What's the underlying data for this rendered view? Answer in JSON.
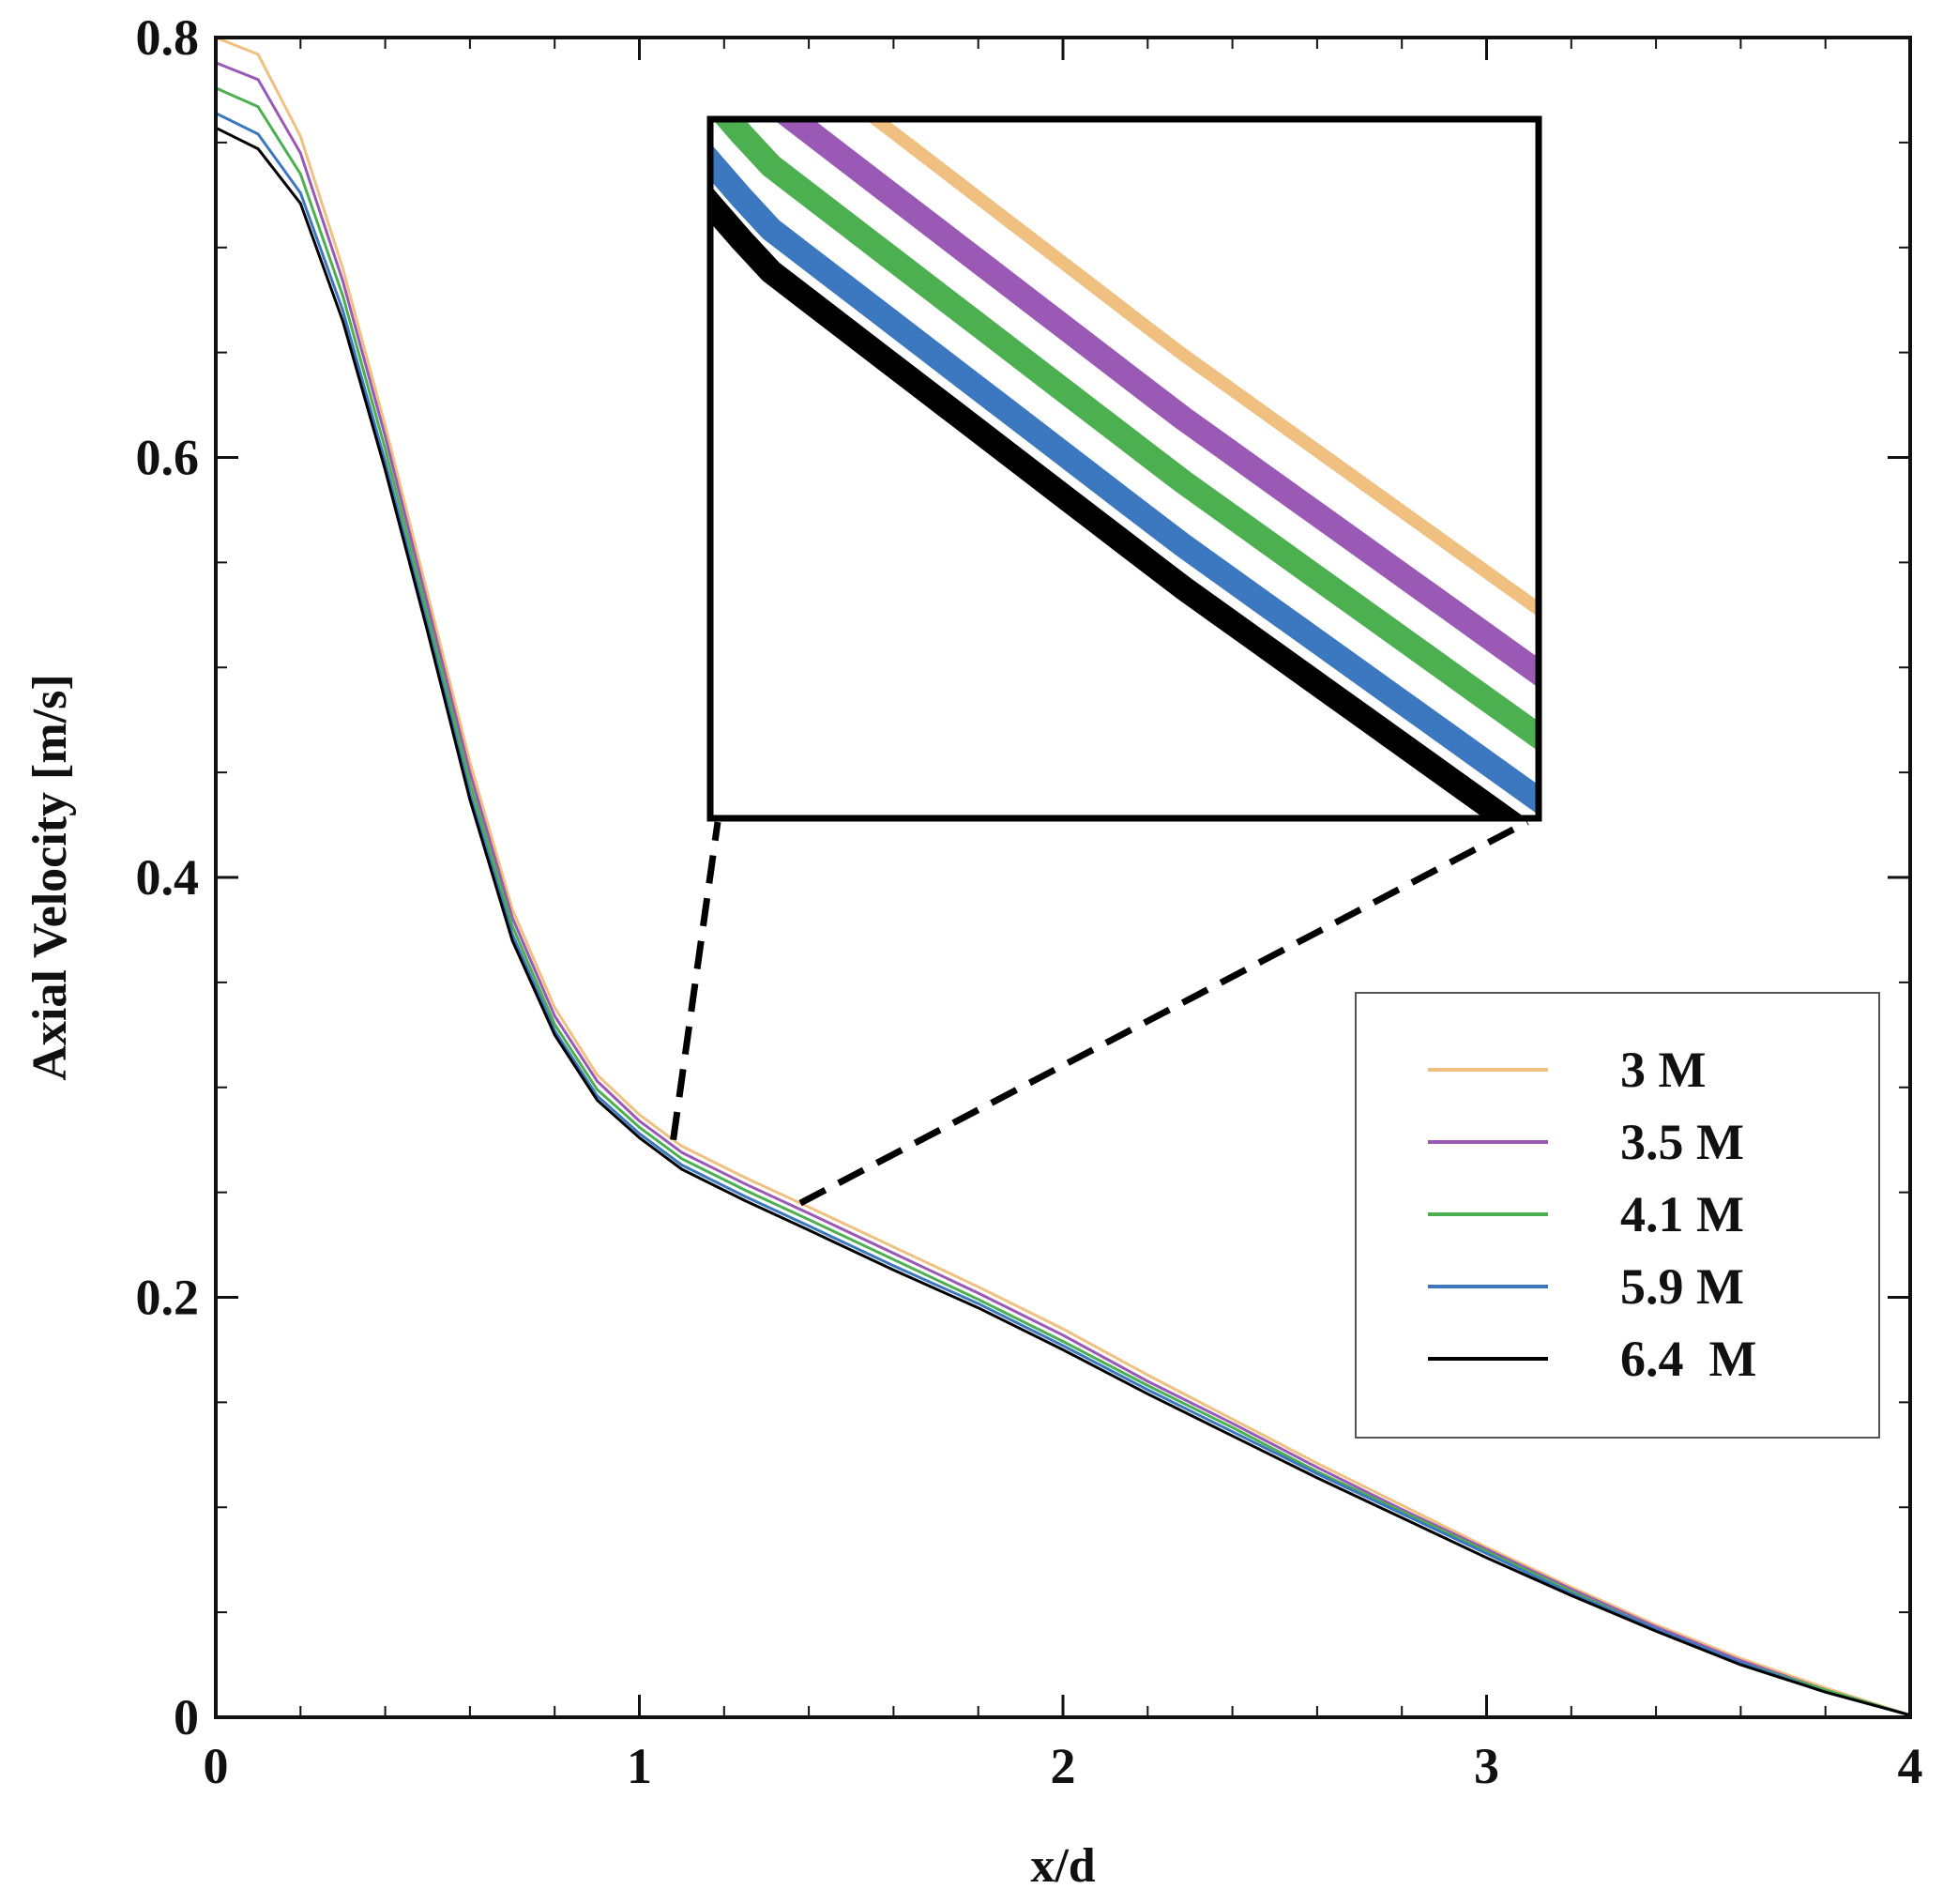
{
  "chart_data": {
    "type": "line",
    "title": "",
    "xlabel": "x/d",
    "ylabel": "Axial Velocity [m/s]",
    "xlim": [
      0,
      4
    ],
    "ylim": [
      0,
      0.8
    ],
    "xticks": [
      0,
      1,
      2,
      3,
      4
    ],
    "xtick_labels": [
      "0",
      "1",
      "2",
      "3",
      "4"
    ],
    "yticks": [
      0,
      0.2,
      0.4,
      0.6,
      0.8
    ],
    "ytick_labels": [
      "0",
      "0.2",
      "0.4",
      "0.6",
      "0.8"
    ],
    "grid": false,
    "legend_position": "right",
    "x": [
      0,
      0.1,
      0.2,
      0.3,
      0.4,
      0.5,
      0.6,
      0.7,
      0.8,
      0.9,
      1.0,
      1.1,
      1.25,
      1.4,
      1.6,
      1.8,
      2.0,
      2.2,
      2.4,
      2.6,
      2.8,
      3.0,
      3.2,
      3.4,
      3.6,
      3.8,
      4.0
    ],
    "series": [
      {
        "name": "3 M",
        "color": "#f0c080",
        "values": [
          0.8,
          0.792,
          0.753,
          0.69,
          0.615,
          0.535,
          0.455,
          0.385,
          0.338,
          0.306,
          0.287,
          0.272,
          0.257,
          0.243,
          0.224,
          0.205,
          0.185,
          0.163,
          0.142,
          0.121,
          0.101,
          0.081,
          0.062,
          0.044,
          0.028,
          0.014,
          0.001
        ]
      },
      {
        "name": "3.5 M",
        "color": "#9b59b6",
        "values": [
          0.788,
          0.78,
          0.745,
          0.684,
          0.61,
          0.53,
          0.45,
          0.381,
          0.334,
          0.303,
          0.284,
          0.269,
          0.254,
          0.24,
          0.221,
          0.202,
          0.182,
          0.16,
          0.14,
          0.119,
          0.099,
          0.08,
          0.061,
          0.043,
          0.027,
          0.013,
          0.001
        ]
      },
      {
        "name": "4.1 M",
        "color": "#4caf50",
        "values": [
          0.776,
          0.767,
          0.735,
          0.677,
          0.604,
          0.525,
          0.445,
          0.377,
          0.33,
          0.299,
          0.281,
          0.266,
          0.251,
          0.237,
          0.218,
          0.199,
          0.179,
          0.158,
          0.138,
          0.117,
          0.098,
          0.079,
          0.06,
          0.042,
          0.026,
          0.013,
          0.001
        ]
      },
      {
        "name": "5.9 M",
        "color": "#3b78c0",
        "values": [
          0.764,
          0.754,
          0.726,
          0.67,
          0.598,
          0.52,
          0.44,
          0.373,
          0.327,
          0.296,
          0.278,
          0.263,
          0.248,
          0.234,
          0.215,
          0.197,
          0.177,
          0.156,
          0.136,
          0.116,
          0.097,
          0.078,
          0.059,
          0.042,
          0.026,
          0.012,
          0.001
        ]
      },
      {
        "name": "6.4  M",
        "color": "#000000",
        "values": [
          0.757,
          0.747,
          0.721,
          0.665,
          0.594,
          0.517,
          0.437,
          0.37,
          0.325,
          0.294,
          0.276,
          0.261,
          0.246,
          0.232,
          0.213,
          0.195,
          0.175,
          0.154,
          0.134,
          0.114,
          0.095,
          0.076,
          0.058,
          0.041,
          0.025,
          0.012,
          0.001
        ]
      }
    ],
    "annotations": [
      {
        "type": "zoom-inset",
        "x_range": [
          1.08,
          1.38
        ],
        "y_range": [
          0.235,
          0.268
        ]
      }
    ]
  },
  "colors": {
    "axis": "#111111",
    "background": "#ffffff",
    "legend_border": "#555555"
  }
}
